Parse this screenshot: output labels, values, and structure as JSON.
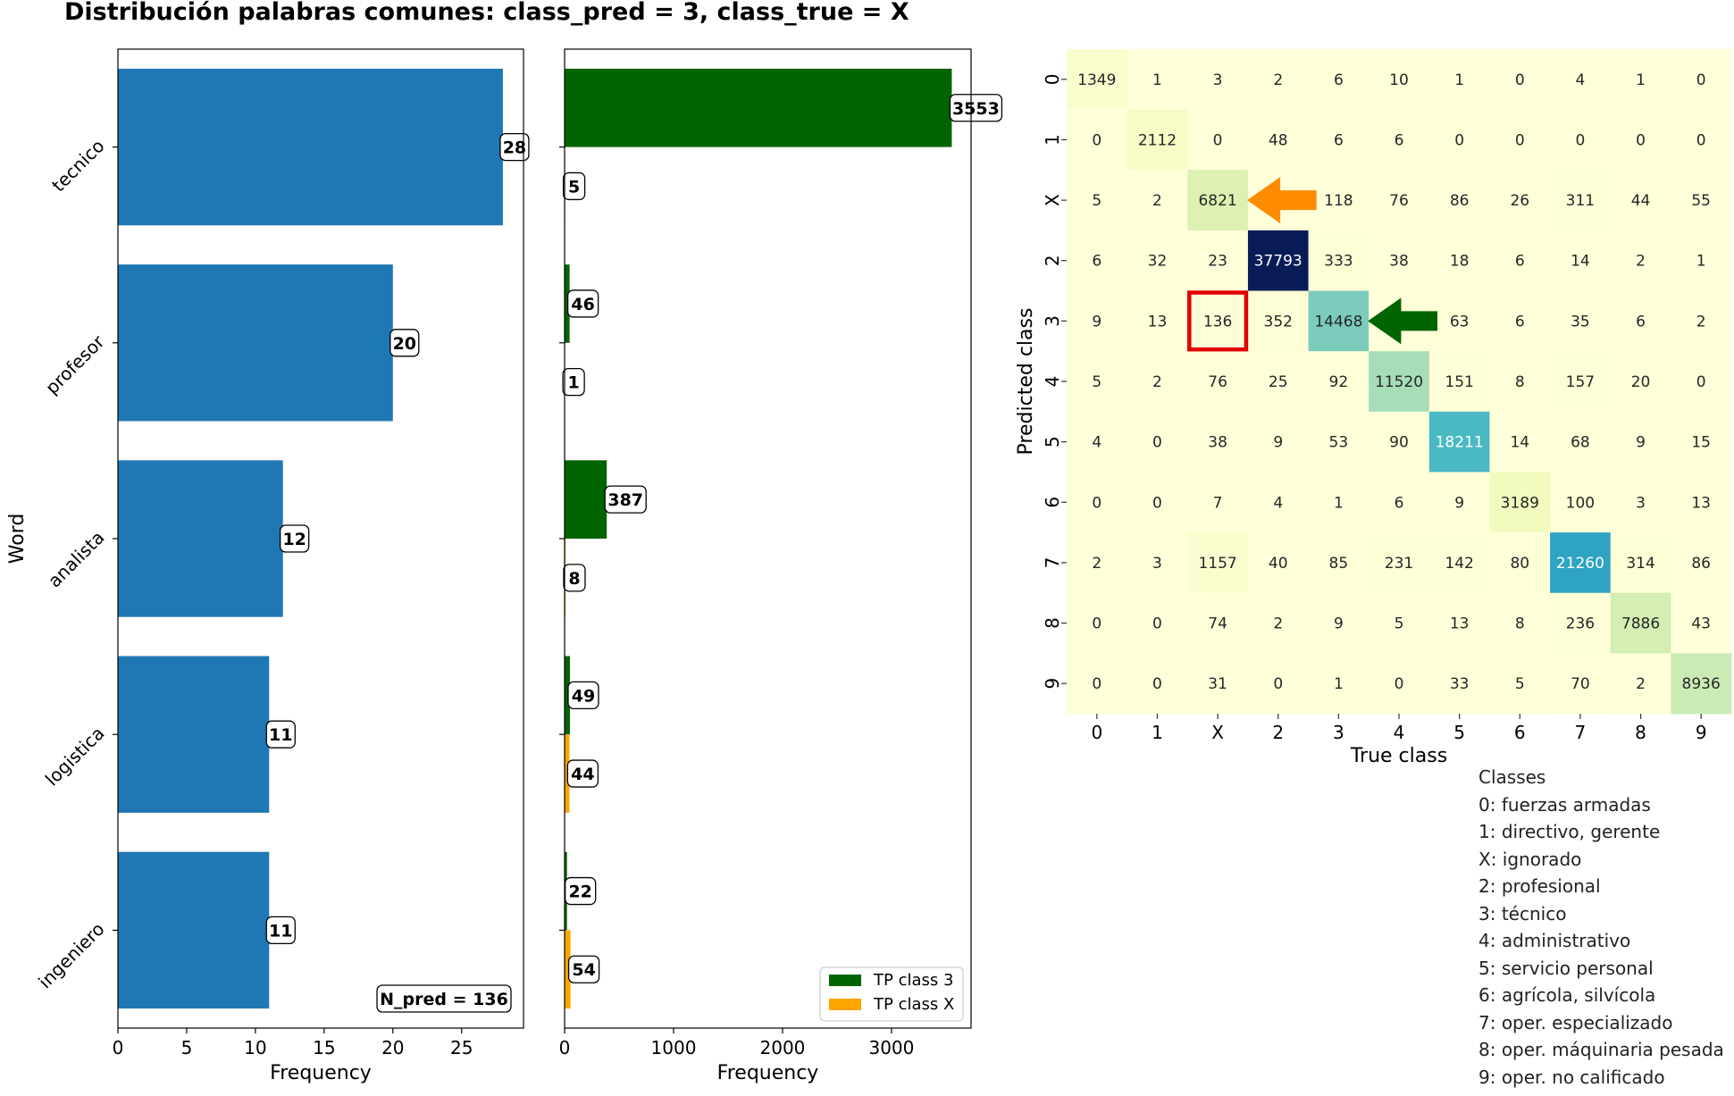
{
  "title": "Distribución palabras comunes:  class_pred = 3, class_true = X",
  "chart_data": [
    {
      "type": "bar",
      "orientation": "horizontal",
      "categories": [
        "tecnico",
        "profesor",
        "analista",
        "logistica",
        "ingeniero"
      ],
      "values": [
        28,
        20,
        12,
        11,
        11
      ],
      "color": "#1f77b4",
      "xlabel": "Frequency",
      "ylabel": "Word",
      "xlim": [
        0,
        29.5
      ],
      "xticks": [
        0,
        5,
        10,
        15,
        20,
        25
      ],
      "annotation": "N_pred = 136"
    },
    {
      "type": "bar",
      "orientation": "horizontal",
      "categories": [
        "tecnico",
        "profesor",
        "analista",
        "logistica",
        "ingeniero"
      ],
      "series": [
        {
          "name": "TP class 3",
          "color": "#006400",
          "values": [
            3553,
            46,
            387,
            49,
            22
          ]
        },
        {
          "name": "TP class X",
          "color": "#ffa500",
          "values": [
            5,
            1,
            8,
            44,
            54
          ]
        }
      ],
      "xlabel": "Frequency",
      "xlim": [
        0,
        3730
      ],
      "xticks": [
        0,
        1000,
        2000,
        3000
      ],
      "legend": "bottom-right"
    },
    {
      "type": "heatmap",
      "colormap": "YlGnBu",
      "vmax": 37793,
      "xlabel": "True class",
      "ylabel": "Predicted class",
      "x_labels": [
        "0",
        "1",
        "X",
        "2",
        "3",
        "4",
        "5",
        "6",
        "7",
        "8",
        "9"
      ],
      "y_labels": [
        "0",
        "1",
        "X",
        "2",
        "3",
        "4",
        "5",
        "6",
        "7",
        "8",
        "9"
      ],
      "matrix": [
        [
          1349,
          1,
          3,
          2,
          6,
          10,
          1,
          0,
          4,
          1,
          0
        ],
        [
          0,
          2112,
          0,
          48,
          6,
          6,
          0,
          0,
          0,
          0,
          0
        ],
        [
          5,
          2,
          6821,
          0,
          118,
          76,
          86,
          26,
          311,
          44,
          55
        ],
        [
          6,
          32,
          23,
          37793,
          333,
          38,
          18,
          6,
          14,
          2,
          1
        ],
        [
          9,
          13,
          136,
          352,
          14468,
          0,
          63,
          6,
          35,
          6,
          2
        ],
        [
          5,
          2,
          76,
          25,
          92,
          11520,
          151,
          8,
          157,
          20,
          0
        ],
        [
          4,
          0,
          38,
          9,
          53,
          90,
          18211,
          14,
          68,
          9,
          15
        ],
        [
          0,
          0,
          7,
          4,
          1,
          6,
          9,
          3189,
          100,
          3,
          13
        ],
        [
          2,
          3,
          1157,
          40,
          85,
          231,
          142,
          80,
          21260,
          314,
          86
        ],
        [
          0,
          0,
          74,
          2,
          9,
          5,
          13,
          8,
          236,
          7886,
          43
        ],
        [
          0,
          0,
          31,
          0,
          1,
          0,
          33,
          5,
          70,
          2,
          8936
        ]
      ],
      "hidden_values": [
        [
          2,
          3
        ],
        [
          4,
          5
        ]
      ],
      "highlight_cell": {
        "row": 4,
        "col": 2,
        "color": "#e00000"
      },
      "arrows": [
        {
          "row": 2,
          "col": 3,
          "color": "#ff8c00",
          "points_to": "left"
        },
        {
          "row": 4,
          "col": 5,
          "color": "#006400",
          "points_to": "left"
        }
      ]
    }
  ],
  "legend_box": {
    "title": "Classes",
    "items": [
      "0: fuerzas armadas",
      "1: directivo, gerente",
      "X: ignorado",
      "2: profesional",
      "3: técnico",
      "4: administrativo",
      "5: servicio personal",
      "6: agrícola, silvícola",
      "7: oper. especializado",
      "8: oper. máquinaria pesada",
      "9: oper. no calificado"
    ]
  }
}
